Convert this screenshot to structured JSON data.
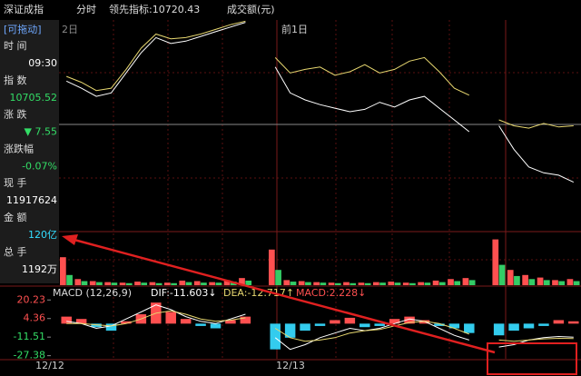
{
  "toolbar": {
    "name": "深证成指",
    "mode": "分时",
    "lead": "领先指标:10720.43",
    "turnover": "成交额(元)"
  },
  "side_panel": {
    "title": "[可拖动]",
    "rows": [
      {
        "label": "时 间",
        "value": "09:30",
        "color": "#ffffff"
      },
      {
        "label": "指 数",
        "value": "10705.52",
        "color": "#33dd66"
      },
      {
        "label": "涨 跌",
        "value": "▼ 7.55",
        "color": "#33dd66"
      },
      {
        "label": "涨跌幅",
        "value": "-0.07%",
        "color": "#33dd66"
      },
      {
        "label": "现 手",
        "value": "11917624",
        "color": "#ffffff"
      },
      {
        "label": "金 额",
        "value": "120亿",
        "color": "#33ddff"
      },
      {
        "label": "总 手",
        "value": "1192万",
        "color": "#ffffff"
      }
    ]
  },
  "chart_data": {
    "type": "line",
    "day_labels": [
      "2日",
      "前1日"
    ],
    "x_labels": [
      "12/12",
      "12/13"
    ],
    "price": {
      "ylim": [
        10600,
        10780
      ],
      "series": [
        {
          "color": "#ffffff",
          "values": [
            10728,
            10722,
            10715,
            10718,
            10735,
            10752,
            10765,
            10760,
            10762,
            10766,
            10770,
            10774,
            10778,
            null,
            10740,
            10718,
            10712,
            10708,
            10705,
            10702,
            10704,
            10710,
            10706,
            10712,
            10715,
            10705,
            10695,
            10685,
            null,
            10690,
            10670,
            10655,
            10650,
            10648,
            10642
          ]
        },
        {
          "color": "#e8d870",
          "values": [
            10732,
            10727,
            10720,
            10722,
            10738,
            10756,
            10768,
            10764,
            10765,
            10768,
            10772,
            10776,
            10779,
            null,
            10748,
            10735,
            10738,
            10740,
            10733,
            10736,
            10742,
            10735,
            10738,
            10745,
            10748,
            10736,
            10722,
            10716,
            null,
            10695,
            10690,
            10688,
            10692,
            10689,
            10690
          ]
        }
      ]
    },
    "volume": {
      "ylim": [
        0,
        100
      ],
      "series": [
        {
          "color": "#ff5050",
          "values": [
            55,
            12,
            8,
            6,
            5,
            7,
            6,
            5,
            9,
            8,
            6,
            10,
            14,
            null,
            70,
            10,
            8,
            6,
            5,
            6,
            5,
            6,
            7,
            5,
            6,
            9,
            12,
            14,
            null,
            90,
            30,
            20,
            15,
            10,
            12
          ]
        },
        {
          "color": "#33cc66",
          "values": [
            20,
            8,
            6,
            5,
            4,
            5,
            4,
            4,
            6,
            5,
            5,
            7,
            9,
            null,
            30,
            7,
            6,
            5,
            4,
            4,
            4,
            5,
            5,
            4,
            5,
            6,
            8,
            10,
            null,
            40,
            18,
            12,
            10,
            8,
            8
          ]
        }
      ]
    },
    "macd": {
      "header": [
        "MACD (12,26,9)",
        "DIF:-11.603↓",
        "DEA:-12.717↑",
        "MACD:2.228↓"
      ],
      "ylim": [
        -30,
        22
      ],
      "yticks": [
        {
          "value": 20.23,
          "label": "20.23"
        },
        {
          "value": 4.36,
          "label": "4.36"
        },
        {
          "value": -11.51,
          "label": "-11.51"
        },
        {
          "value": -27.38,
          "label": "-27.38"
        }
      ],
      "hist": {
        "up_color": "#ff5050",
        "down_color": "#33ccee",
        "values": [
          6,
          4,
          -3,
          -6,
          2,
          8,
          18,
          10,
          4,
          -2,
          -4,
          3,
          6,
          null,
          -22,
          -12,
          -6,
          -2,
          3,
          5,
          -3,
          -2,
          4,
          6,
          3,
          -2,
          -4,
          -8,
          null,
          -10,
          -6,
          -4,
          -2,
          3,
          2
        ]
      },
      "series": [
        {
          "color": "#ffffff",
          "values": [
            2,
            0,
            -4,
            -2,
            4,
            10,
            16,
            12,
            6,
            2,
            0,
            4,
            8,
            null,
            -12,
            -22,
            -18,
            -12,
            -8,
            -4,
            -6,
            -4,
            0,
            4,
            2,
            -4,
            -10,
            -14,
            null,
            -20,
            -18,
            -14,
            -12,
            -11,
            -11.6
          ]
        },
        {
          "color": "#e8d870",
          "values": [
            0,
            0,
            -1,
            -2,
            0,
            4,
            9,
            11,
            8,
            4,
            2,
            3,
            5,
            null,
            -4,
            -12,
            -15,
            -14,
            -12,
            -8,
            -6,
            -5,
            -2,
            1,
            2,
            0,
            -4,
            -9,
            null,
            -14,
            -15,
            -14,
            -13,
            -12.5,
            -12.7
          ]
        }
      ]
    }
  }
}
